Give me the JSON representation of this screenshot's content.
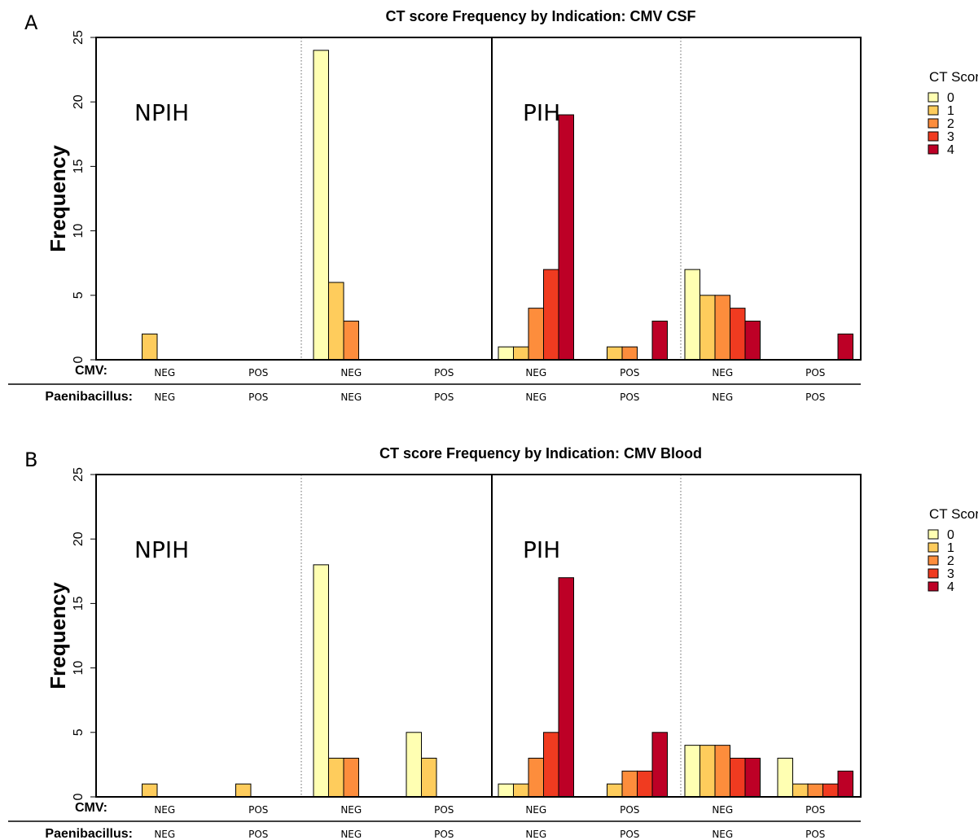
{
  "colors": {
    "0": "#FFFFB2",
    "1": "#FECC5C",
    "2": "#FD8D3C",
    "3": "#F03B20",
    "4": "#BD0026"
  },
  "row_labels": {
    "cmv": "CMV:",
    "paenibacillus": "Paenibacillus:"
  },
  "panels": [
    {
      "letter": "A",
      "title": "CT score Frequency by Indication: CMV CSF"
    },
    {
      "letter": "B",
      "title": "CT score Frequency by Indication: CMV Blood"
    }
  ],
  "chart_data": [
    {
      "type": "bar",
      "title": "CT score Frequency by Indication: CMV CSF",
      "ylabel": "Frequency",
      "ylim": [
        0,
        25
      ],
      "yticks": [
        0,
        5,
        10,
        15,
        20,
        25
      ],
      "group_labels": [
        "NPIH",
        "PIH"
      ],
      "legend": {
        "title": "CT Score",
        "entries": [
          "0",
          "1",
          "2",
          "3",
          "4"
        ],
        "position": "right"
      },
      "categories": [
        {
          "group": "NPIH",
          "cmv": "NEG",
          "paenibacillus": "NEG",
          "values": [
            0,
            2,
            0,
            0,
            0
          ]
        },
        {
          "group": "NPIH",
          "cmv": "POS",
          "paenibacillus": "POS",
          "values": [
            0,
            0,
            0,
            0,
            0
          ]
        },
        {
          "group": "NPIH",
          "cmv": "NEG",
          "paenibacillus": "NEG",
          "values": [
            24,
            6,
            3,
            0,
            0
          ]
        },
        {
          "group": "NPIH",
          "cmv": "POS",
          "paenibacillus": "POS",
          "values": [
            0,
            0,
            0,
            0,
            0
          ]
        },
        {
          "group": "PIH",
          "cmv": "NEG",
          "paenibacillus": "NEG",
          "values": [
            1,
            1,
            4,
            7,
            19
          ]
        },
        {
          "group": "PIH",
          "cmv": "POS",
          "paenibacillus": "POS",
          "values": [
            0,
            1,
            1,
            0,
            3
          ]
        },
        {
          "group": "PIH",
          "cmv": "NEG",
          "paenibacillus": "NEG",
          "values": [
            7,
            5,
            5,
            4,
            3
          ]
        },
        {
          "group": "PIH",
          "cmv": "POS",
          "paenibacillus": "POS",
          "values": [
            0,
            0,
            0,
            0,
            2
          ]
        }
      ]
    },
    {
      "type": "bar",
      "title": "CT score Frequency by Indication: CMV Blood",
      "ylabel": "Frequency",
      "ylim": [
        0,
        25
      ],
      "yticks": [
        0,
        5,
        10,
        15,
        20,
        25
      ],
      "group_labels": [
        "NPIH",
        "PIH"
      ],
      "legend": {
        "title": "CT Score",
        "entries": [
          "0",
          "1",
          "2",
          "3",
          "4"
        ],
        "position": "right"
      },
      "categories": [
        {
          "group": "NPIH",
          "cmv": "NEG",
          "paenibacillus": "NEG",
          "values": [
            0,
            1,
            0,
            0,
            0
          ]
        },
        {
          "group": "NPIH",
          "cmv": "POS",
          "paenibacillus": "POS",
          "values": [
            0,
            1,
            0,
            0,
            0
          ]
        },
        {
          "group": "NPIH",
          "cmv": "NEG",
          "paenibacillus": "NEG",
          "values": [
            18,
            3,
            3,
            0,
            0
          ]
        },
        {
          "group": "NPIH",
          "cmv": "POS",
          "paenibacillus": "POS",
          "values": [
            5,
            3,
            0,
            0,
            0
          ]
        },
        {
          "group": "PIH",
          "cmv": "NEG",
          "paenibacillus": "NEG",
          "values": [
            1,
            1,
            3,
            5,
            17
          ]
        },
        {
          "group": "PIH",
          "cmv": "POS",
          "paenibacillus": "POS",
          "values": [
            0,
            1,
            2,
            2,
            5
          ]
        },
        {
          "group": "PIH",
          "cmv": "NEG",
          "paenibacillus": "NEG",
          "values": [
            4,
            4,
            4,
            3,
            3
          ]
        },
        {
          "group": "PIH",
          "cmv": "POS",
          "paenibacillus": "POS",
          "values": [
            3,
            1,
            1,
            1,
            2
          ]
        }
      ]
    }
  ]
}
